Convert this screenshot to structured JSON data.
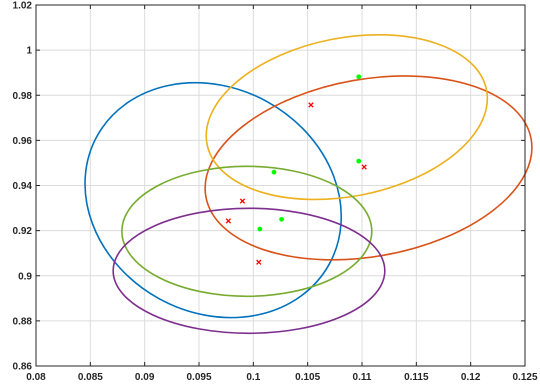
{
  "chart_data": {
    "type": "scatter",
    "title": "",
    "xlabel": "",
    "ylabel": "",
    "xlim": [
      0.08,
      0.125
    ],
    "ylim": [
      0.86,
      1.02
    ],
    "xticks": [
      0.08,
      0.085,
      0.09,
      0.095,
      0.1,
      0.105,
      0.11,
      0.115,
      0.12,
      0.125
    ],
    "xtick_labels": [
      "0.08",
      "0.085",
      "0.09",
      "0.095",
      "0.1",
      "0.105",
      "0.11",
      "0.115",
      "0.12",
      "0.125"
    ],
    "yticks": [
      0.86,
      0.88,
      0.9,
      0.92,
      0.94,
      0.96,
      0.98,
      1.0,
      1.02
    ],
    "ytick_labels": [
      "0.86",
      "0.88",
      "0.9",
      "0.92",
      "0.94",
      "0.96",
      "0.98",
      "1",
      "1.02"
    ],
    "grid": true,
    "legend": "none",
    "ellipses": [
      {
        "color": "#0072BD",
        "center": [
          0.0963,
          0.9335
        ],
        "semi_axis_a": 0.0122,
        "semi_axis_b": 0.0498,
        "angle_deg": 29
      },
      {
        "color": "#D95319",
        "center": [
          0.1106,
          0.9478
        ],
        "semi_axis_a": 0.0152,
        "semi_axis_b": 0.0393,
        "angle_deg": -10
      },
      {
        "color": "#EDB120",
        "center": [
          0.1086,
          0.9703
        ],
        "semi_axis_a": 0.0131,
        "semi_axis_b": 0.0351,
        "angle_deg": -11
      },
      {
        "color": "#77AC30",
        "center": [
          0.0994,
          0.9197
        ],
        "semi_axis_a": 0.0115,
        "semi_axis_b": 0.0288,
        "angle_deg": 0
      },
      {
        "color": "#7E2F8E",
        "center": [
          0.0996,
          0.9022
        ],
        "semi_axis_a": 0.0125,
        "semi_axis_b": 0.0277,
        "angle_deg": 0
      }
    ],
    "series": [
      {
        "marker": "circle",
        "color": "#00ff00",
        "x": [
          0.1097,
          0.1097,
          0.1019,
          0.1026,
          0.1006
        ],
        "y": [
          0.9882,
          0.9508,
          0.9459,
          0.925,
          0.9207
        ]
      },
      {
        "marker": "x",
        "color": "#ff0000",
        "x": [
          0.1053,
          0.1102,
          0.099,
          0.0977,
          0.1005
        ],
        "y": [
          0.9757,
          0.9482,
          0.9331,
          0.9243,
          0.906
        ]
      }
    ]
  }
}
